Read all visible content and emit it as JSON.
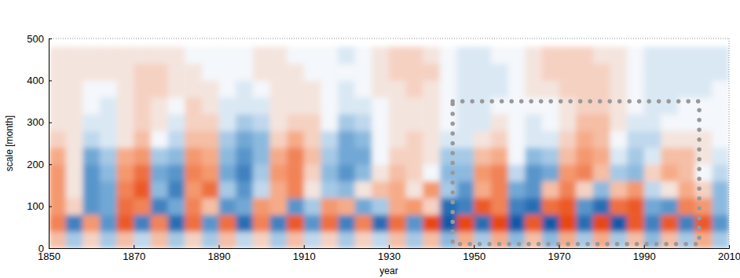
{
  "chart_data": {
    "type": "heatmap",
    "x_label": "year",
    "y_label": "scale [month]",
    "xlim": [
      1850,
      2010
    ],
    "xticks": [
      1850,
      1870,
      1890,
      1910,
      1930,
      1950,
      1970,
      1990,
      2010
    ],
    "ylim": [
      0,
      500
    ],
    "yticks": [
      0,
      100,
      200,
      300,
      400,
      500
    ],
    "x": [
      1852,
      1856,
      1860,
      1864,
      1868,
      1872,
      1876,
      1880,
      1884,
      1888,
      1892,
      1896,
      1900,
      1904,
      1908,
      1912,
      1916,
      1920,
      1924,
      1928,
      1932,
      1936,
      1940,
      1944,
      1948,
      1952,
      1956,
      1960,
      1964,
      1968,
      1972,
      1976,
      1980,
      1984,
      1988,
      1992,
      1996,
      2000,
      2004,
      2008
    ],
    "y": [
      20,
      60,
      100,
      140,
      180,
      220,
      260,
      300,
      340,
      380,
      420,
      460
    ],
    "values": [
      [
        0.3,
        -0.3,
        0.2,
        -0.3,
        0.3,
        -0.2,
        0.3,
        -0.3,
        0.2,
        -0.3,
        0.3,
        -0.2,
        0.2,
        -0.3,
        0.3,
        -0.2,
        0.2,
        -0.3,
        0.2,
        -0.2,
        0.3,
        -0.3,
        0.3,
        -0.4,
        0.4,
        -0.3,
        0.4,
        -0.4,
        0.3,
        -0.4,
        0.4,
        -0.3,
        0.4,
        -0.3,
        0.3,
        -0.4,
        0.3,
        -0.3,
        0.4,
        -0.3
      ],
      [
        0.6,
        -0.7,
        0.5,
        -0.6,
        0.8,
        -0.7,
        0.6,
        -0.8,
        0.7,
        -0.6,
        0.7,
        -0.8,
        0.6,
        -0.7,
        0.8,
        -0.6,
        0.7,
        -0.7,
        0.6,
        -0.8,
        0.7,
        -0.6,
        0.9,
        -0.9,
        0.9,
        -0.8,
        0.9,
        -0.9,
        0.8,
        -0.9,
        0.9,
        -0.8,
        0.9,
        -0.9,
        0.8,
        -0.7,
        0.8,
        -0.7,
        0.8,
        -0.6
      ],
      [
        0.5,
        0.2,
        -0.6,
        -0.5,
        0.7,
        0.6,
        -0.7,
        -0.5,
        0.6,
        0.3,
        -0.6,
        -0.5,
        0.5,
        0.4,
        -0.6,
        -0.3,
        0.5,
        0.4,
        -0.5,
        -0.3,
        0.4,
        0.5,
        0.2,
        -0.8,
        -0.7,
        0.8,
        0.6,
        -0.7,
        -0.8,
        0.7,
        0.8,
        -0.6,
        -0.8,
        0.7,
        0.8,
        -0.5,
        -0.6,
        0.6,
        0.5,
        -0.4
      ],
      [
        0.5,
        0.1,
        -0.6,
        -0.5,
        0.6,
        0.8,
        -0.4,
        -0.7,
        0.5,
        0.7,
        -0.3,
        -0.6,
        -0.2,
        0.4,
        0.6,
        0.1,
        -0.3,
        -0.4,
        0.1,
        0.3,
        0.4,
        0.1,
        0.5,
        -0.3,
        -0.6,
        0.4,
        0.6,
        -0.5,
        -0.6,
        0.3,
        0.6,
        0.2,
        -0.4,
        0.3,
        0.5,
        -0.2,
        0.1,
        0.4,
        0.2,
        -0.4
      ],
      [
        0.5,
        0.1,
        -0.6,
        -0.4,
        0.5,
        0.7,
        -0.5,
        -0.6,
        0.6,
        0.5,
        -0.5,
        -0.7,
        -0.3,
        0.5,
        0.6,
        0.2,
        -0.4,
        -0.6,
        -0.4,
        0.1,
        0.3,
        0.2,
        0.0,
        -0.4,
        -0.4,
        0.5,
        0.6,
        -0.2,
        -0.6,
        -0.5,
        0.5,
        0.6,
        0.3,
        -0.3,
        -0.4,
        0.2,
        0.4,
        0.3,
        0.0,
        -0.2
      ],
      [
        0.4,
        0.1,
        -0.5,
        -0.3,
        0.4,
        0.5,
        -0.3,
        -0.4,
        0.5,
        0.4,
        -0.4,
        -0.6,
        -0.4,
        0.4,
        0.6,
        0.3,
        -0.3,
        -0.5,
        -0.5,
        0.0,
        0.2,
        0.2,
        0.1,
        -0.3,
        -0.3,
        0.3,
        0.4,
        0.0,
        -0.4,
        -0.3,
        0.3,
        0.5,
        0.4,
        -0.1,
        -0.3,
        -0.1,
        0.3,
        0.3,
        0.1,
        -0.1
      ],
      [
        0.2,
        0.1,
        -0.2,
        -0.1,
        0.1,
        0.3,
        0.0,
        -0.2,
        0.3,
        0.3,
        -0.3,
        -0.5,
        -0.4,
        0.2,
        0.4,
        0.2,
        -0.2,
        -0.5,
        -0.4,
        0.0,
        0.1,
        0.2,
        0.1,
        -0.1,
        -0.1,
        0.1,
        0.2,
        0.0,
        -0.1,
        -0.1,
        0.2,
        0.4,
        0.3,
        0.0,
        -0.2,
        -0.2,
        0.1,
        0.1,
        0.1,
        0.0
      ],
      [
        0.1,
        0.1,
        -0.1,
        -0.1,
        0.1,
        0.2,
        0.1,
        -0.1,
        0.2,
        0.2,
        -0.1,
        -0.3,
        -0.2,
        0.1,
        0.2,
        0.2,
        0.0,
        -0.3,
        -0.2,
        0.0,
        0.1,
        0.1,
        0.1,
        0.0,
        -0.1,
        -0.1,
        0.1,
        0.0,
        -0.1,
        0.0,
        0.1,
        0.3,
        0.3,
        0.1,
        -0.1,
        -0.1,
        0.0,
        0.0,
        0.0,
        0.0
      ],
      [
        0.1,
        0.1,
        0.0,
        -0.1,
        0.1,
        0.2,
        0.1,
        0.0,
        0.2,
        0.1,
        -0.1,
        -0.1,
        -0.1,
        0.1,
        0.1,
        0.1,
        0.0,
        -0.1,
        -0.1,
        0.0,
        0.1,
        0.1,
        0.1,
        0.0,
        -0.1,
        -0.1,
        0.0,
        0.0,
        0.0,
        0.0,
        0.1,
        0.2,
        0.2,
        0.1,
        0.0,
        -0.1,
        -0.1,
        0.0,
        0.0,
        0.0
      ],
      [
        0.1,
        0.1,
        0.0,
        0.0,
        0.1,
        0.2,
        0.2,
        0.1,
        0.1,
        0.1,
        0.0,
        -0.1,
        0.0,
        0.1,
        0.1,
        0.1,
        0.0,
        -0.1,
        0.0,
        0.1,
        0.1,
        0.2,
        0.1,
        0.0,
        -0.1,
        -0.1,
        -0.1,
        0.0,
        0.1,
        0.1,
        0.2,
        0.2,
        0.2,
        0.1,
        0.0,
        -0.1,
        -0.1,
        -0.1,
        -0.1,
        0.0
      ],
      [
        0.1,
        0.1,
        0.1,
        0.1,
        0.1,
        0.2,
        0.2,
        0.1,
        0.1,
        0.0,
        0.0,
        0.0,
        0.1,
        0.1,
        0.1,
        0.0,
        0.0,
        0.0,
        0.0,
        0.1,
        0.2,
        0.2,
        0.2,
        0.0,
        -0.1,
        -0.1,
        -0.1,
        0.0,
        0.1,
        0.2,
        0.2,
        0.2,
        0.2,
        0.1,
        0.0,
        -0.1,
        -0.1,
        -0.1,
        -0.1,
        -0.1
      ],
      [
        0.1,
        0.1,
        0.1,
        0.1,
        0.1,
        0.1,
        0.1,
        0.1,
        0.0,
        0.0,
        0.0,
        0.0,
        0.1,
        0.1,
        0.0,
        0.0,
        0.0,
        -0.1,
        0.0,
        0.1,
        0.2,
        0.2,
        0.1,
        0.0,
        -0.1,
        -0.1,
        0.0,
        0.0,
        0.1,
        0.2,
        0.2,
        0.2,
        0.1,
        0.1,
        0.0,
        -0.1,
        -0.1,
        -0.1,
        -0.1,
        -0.1
      ]
    ],
    "highlight_box": {
      "x": [
        1945,
        2003
      ],
      "y": [
        10,
        350
      ]
    }
  }
}
